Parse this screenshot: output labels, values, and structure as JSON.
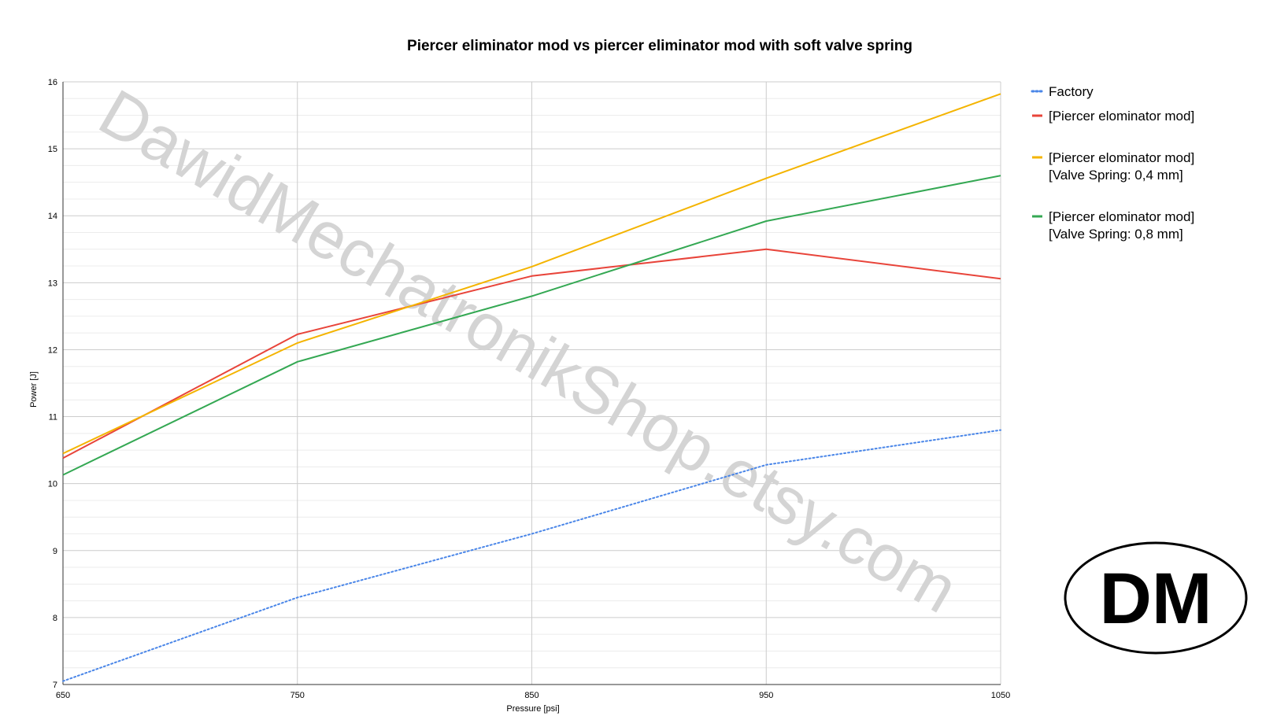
{
  "chart_data": {
    "type": "line",
    "title": "Piercer eliminator mod vs piercer eliminator mod with soft valve spring",
    "xlabel": "Pressure [psi]",
    "ylabel": "Power [J]",
    "xlim": [
      650,
      1050
    ],
    "ylim": [
      7,
      16
    ],
    "x_ticks": [
      650,
      750,
      850,
      950,
      1050
    ],
    "y_ticks": [
      7,
      8,
      9,
      10,
      11,
      12,
      13,
      14,
      15,
      16
    ],
    "y_minor_step": 0.25,
    "grid": true,
    "legend_position": "right",
    "x": [
      650,
      750,
      850,
      950,
      1050
    ],
    "series": [
      {
        "name": "Factory",
        "values": [
          7.05,
          8.3,
          9.25,
          10.28,
          10.8
        ],
        "color": "#4a86e8",
        "style": "dotted"
      },
      {
        "name": "[Piercer elominator mod]",
        "values": [
          10.38,
          12.23,
          13.1,
          13.5,
          13.06
        ],
        "color": "#e8443a",
        "style": "solid"
      },
      {
        "name": "[Piercer elominator mod]\n[Valve Spring: 0,4 mm]",
        "values": [
          10.45,
          12.1,
          13.24,
          14.56,
          15.82
        ],
        "color": "#f4b400",
        "style": "solid"
      },
      {
        "name": "[Piercer elominator mod]\n[Valve Spring: 0,8 mm]",
        "values": [
          10.13,
          11.82,
          12.8,
          13.92,
          14.6
        ],
        "color": "#34a853",
        "style": "solid"
      }
    ],
    "watermark": "DawidMechatronikShop.etsy.com",
    "logo": "DM"
  }
}
